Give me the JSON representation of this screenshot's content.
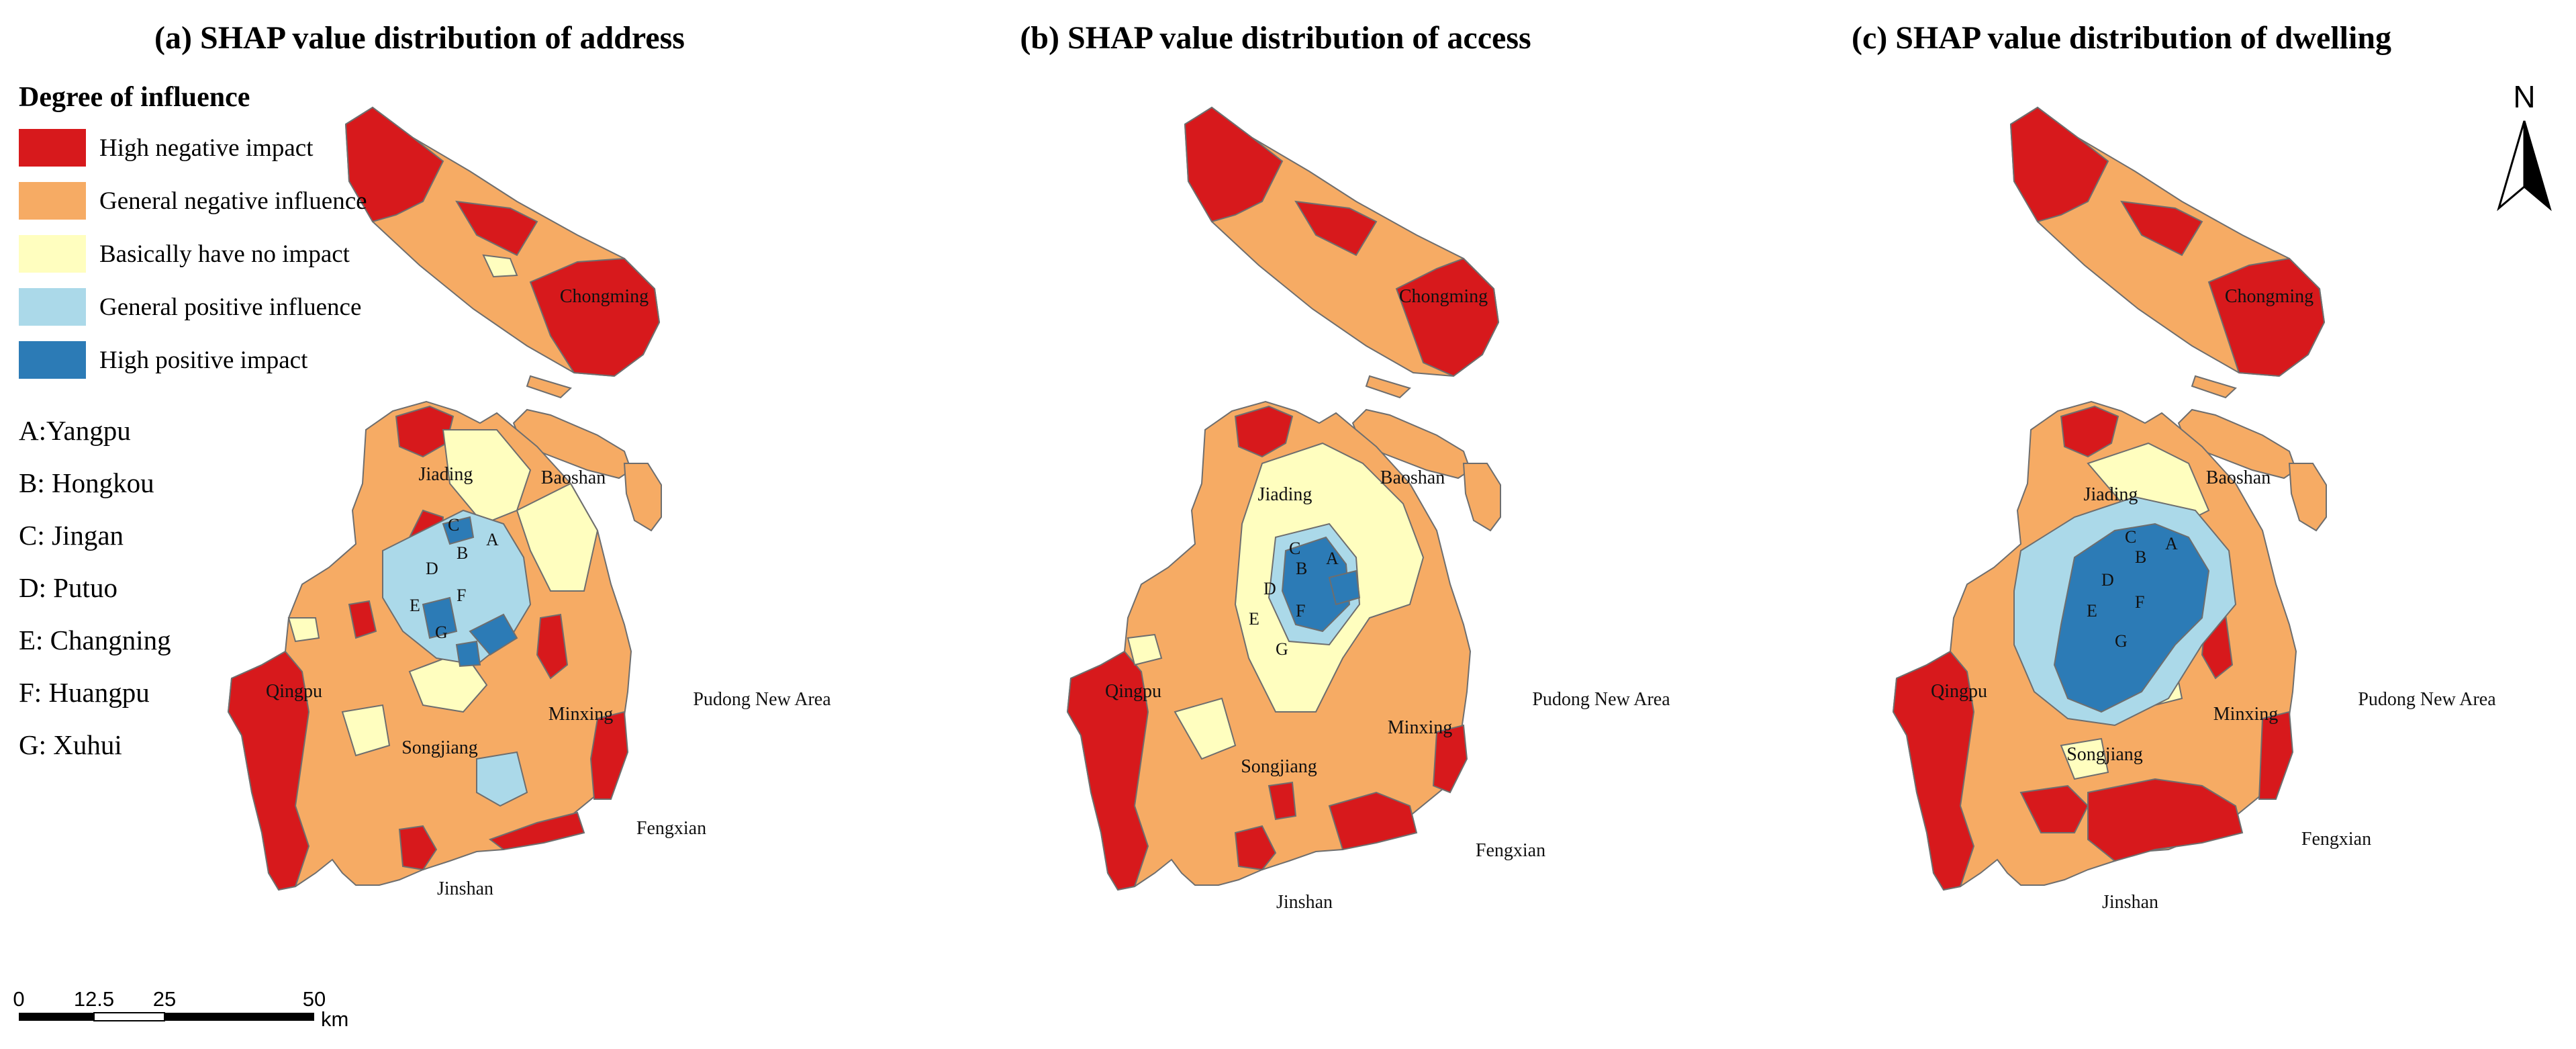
{
  "colors": {
    "high_negative": "#d7191c",
    "general_negative": "#f6ab64",
    "no_impact": "#fffebf",
    "general_positive": "#abd9e9",
    "high_positive": "#2c7bb6",
    "boundary": "#6e6e6e"
  },
  "panels": [
    {
      "title": "(a) SHAP value distribution of address"
    },
    {
      "title": "(b) SHAP value distribution of access"
    },
    {
      "title": "(c) SHAP value distribution of dwelling"
    }
  ],
  "legend": {
    "title": "Degree of influence",
    "items": [
      {
        "label": "High negative impact",
        "color_key": "high_negative"
      },
      {
        "label": "General negative influence",
        "color_key": "general_negative"
      },
      {
        "label": "Basically have no impact",
        "color_key": "no_impact"
      },
      {
        "label": "General positive influence",
        "color_key": "general_positive"
      },
      {
        "label": "High positive impact",
        "color_key": "high_positive"
      }
    ]
  },
  "abbreviations": [
    "A:Yangpu",
    "B: Hongkou",
    "C: Jingan",
    "D: Putuo",
    "E: Changning",
    "F: Huangpu",
    "G: Xuhui"
  ],
  "districts": {
    "chongming": "Chongming",
    "jiading": "Jiading",
    "baoshan": "Baoshan",
    "qingpu": "Qingpu",
    "songjiang": "Songjiang",
    "minxing": "Minxing",
    "pudong": "Pudong New Area",
    "fengxian": "Fengxian",
    "jinshan": "Jinshan"
  },
  "letters": [
    "A",
    "B",
    "C",
    "D",
    "E",
    "F",
    "G"
  ],
  "scale_bar": {
    "ticks": [
      "0",
      "12.5",
      "25",
      "50"
    ],
    "unit": "km"
  },
  "north_arrow": {
    "label": "N",
    "icon": "north-arrow-icon"
  }
}
